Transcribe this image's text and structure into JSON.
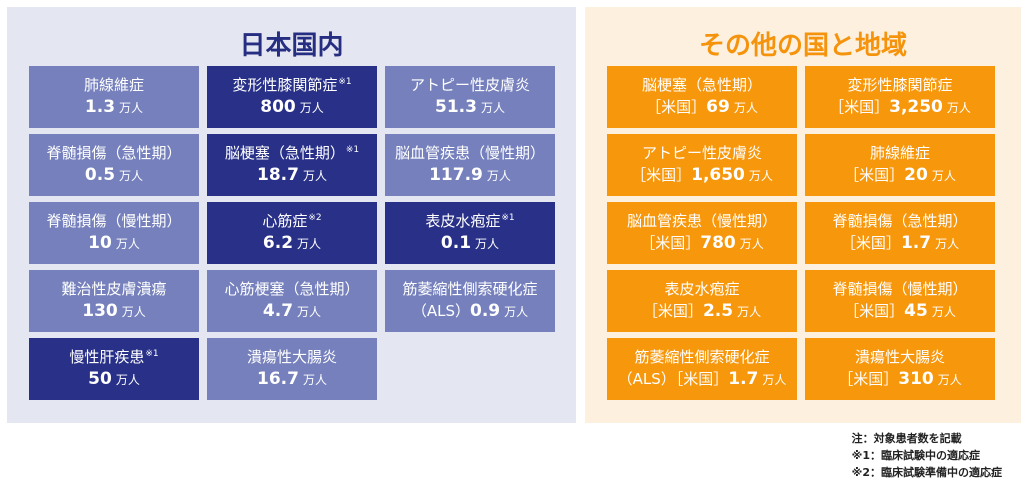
{
  "japan": {
    "title": "日本国内",
    "unit": "万人",
    "cells": [
      {
        "label": "肺線維症",
        "mark": "",
        "value": "1.3",
        "style": "light"
      },
      {
        "label": "変形性膝関節症",
        "mark": "※1",
        "value": "800",
        "style": "dark"
      },
      {
        "label": "アトピー性皮膚炎",
        "mark": "",
        "value": "51.3",
        "style": "light"
      },
      {
        "label": "脊髄損傷（急性期）",
        "mark": "",
        "value": "0.5",
        "style": "light"
      },
      {
        "label": "脳梗塞（急性期）",
        "mark": "※1",
        "value": "18.7",
        "style": "dark"
      },
      {
        "label": "脳血管疾患（慢性期）",
        "mark": "",
        "value": "117.9",
        "style": "light"
      },
      {
        "label": "脊髄損傷（慢性期）",
        "mark": "",
        "value": "10",
        "style": "light"
      },
      {
        "label": "心筋症",
        "mark": "※2",
        "value": "6.2",
        "style": "dark"
      },
      {
        "label": "表皮水疱症",
        "mark": "※1",
        "value": "0.1",
        "style": "dark"
      },
      {
        "label": "難治性皮膚潰瘍",
        "mark": "",
        "value": "130",
        "style": "light"
      },
      {
        "label": "心筋梗塞（急性期）",
        "mark": "",
        "value": "4.7",
        "style": "light"
      },
      {
        "label": "筋萎縮性側索硬化症",
        "mark": "",
        "prefix": "（ALS）",
        "value": "0.9",
        "style": "light"
      },
      {
        "label": "慢性肝疾患",
        "mark": "※1",
        "value": "50",
        "style": "dark"
      },
      {
        "label": "潰瘍性大腸炎",
        "mark": "",
        "value": "16.7",
        "style": "light"
      }
    ]
  },
  "world": {
    "title": "その他の国と地域",
    "unit": "万人",
    "cells": [
      {
        "label": "脳梗塞（急性期）",
        "prefix": "［米国］",
        "value": "69"
      },
      {
        "label": "変形性膝関節症",
        "prefix": "［米国］",
        "value": "3,250"
      },
      {
        "label": "アトピー性皮膚炎",
        "prefix": "［米国］",
        "value": "1,650"
      },
      {
        "label": "肺線維症",
        "prefix": "［米国］",
        "value": "20"
      },
      {
        "label": "脳血管疾患（慢性期）",
        "prefix": "［米国］",
        "value": "780"
      },
      {
        "label": "脊髄損傷（急性期）",
        "prefix": "［米国］",
        "value": "1.7"
      },
      {
        "label": "表皮水疱症",
        "prefix": "［米国］",
        "value": "2.5"
      },
      {
        "label": "脊髄損傷（慢性期）",
        "prefix": "［米国］",
        "value": "45"
      },
      {
        "label": "筋萎縮性側索硬化症",
        "prefix": "（ALS）［米国］",
        "value": "1.7"
      },
      {
        "label": "潰瘍性大腸炎",
        "prefix": "［米国］",
        "value": "310"
      }
    ]
  },
  "notes": [
    "注：対象患者数を記載",
    "※1：臨床試験中の適応症",
    "※2：臨床試験準備中の適応症"
  ]
}
